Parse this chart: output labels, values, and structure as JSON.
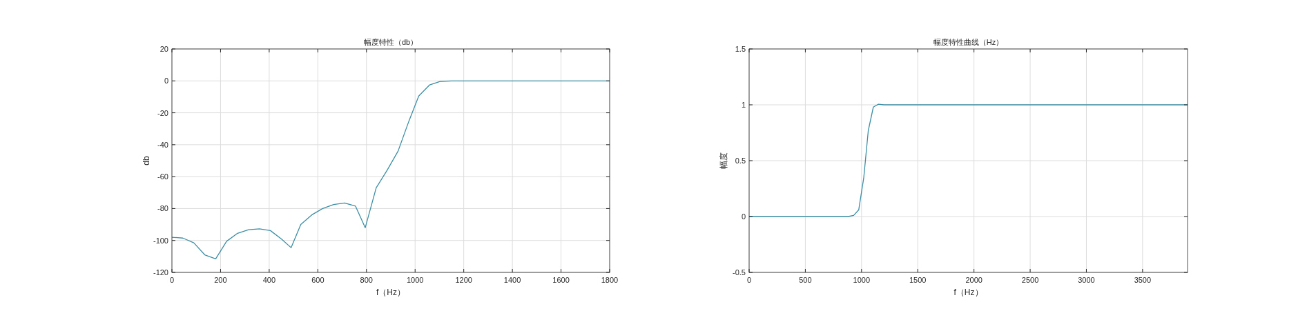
{
  "chart_data": [
    {
      "type": "line",
      "title": "幅度特性（db）",
      "xlabel": "f（Hz）",
      "ylabel": "db",
      "x": [
        0,
        45,
        90,
        135,
        180,
        225,
        270,
        315,
        360,
        405,
        450,
        490,
        530,
        575,
        620,
        665,
        710,
        755,
        795,
        840,
        885,
        930,
        975,
        1015,
        1060,
        1105,
        1150,
        1800
      ],
      "series": [
        {
          "color": "#3b8ea5",
          "values": [
            -98,
            -98.5,
            -101.5,
            -109,
            -111.5,
            -100.5,
            -95.5,
            -93.3,
            -92.7,
            -93.8,
            -99,
            -104.5,
            -90,
            -84,
            -80,
            -77.5,
            -76.5,
            -78.5,
            -92,
            -67,
            -56,
            -44,
            -25,
            -9.5,
            -2.5,
            -0.3,
            0,
            0
          ]
        }
      ],
      "xlim": [
        0,
        1800
      ],
      "xticks": [
        0,
        200,
        400,
        600,
        800,
        1000,
        1200,
        1400,
        1600,
        1800
      ],
      "ylim": [
        -120,
        20
      ],
      "yticks": [
        -120,
        -100,
        -80,
        -60,
        -40,
        -20,
        0,
        20
      ],
      "grid": true
    },
    {
      "type": "line",
      "title": "幅度特性曲线（Hz）",
      "xlabel": "f（Hz）",
      "ylabel": "幅度",
      "x": [
        0,
        880,
        930,
        975,
        1020,
        1060,
        1105,
        1150,
        1200,
        3900
      ],
      "series": [
        {
          "color": "#3b8ea5",
          "values": [
            0,
            0,
            0.01,
            0.06,
            0.35,
            0.77,
            0.98,
            1.005,
            1,
            1
          ]
        }
      ],
      "xlim": [
        0,
        3900
      ],
      "xticks": [
        0,
        500,
        1000,
        1500,
        2000,
        2500,
        3000,
        3500
      ],
      "ylim": [
        -0.5,
        1.5
      ],
      "yticks": [
        -0.5,
        0,
        0.5,
        1,
        1.5
      ],
      "grid": true
    }
  ]
}
